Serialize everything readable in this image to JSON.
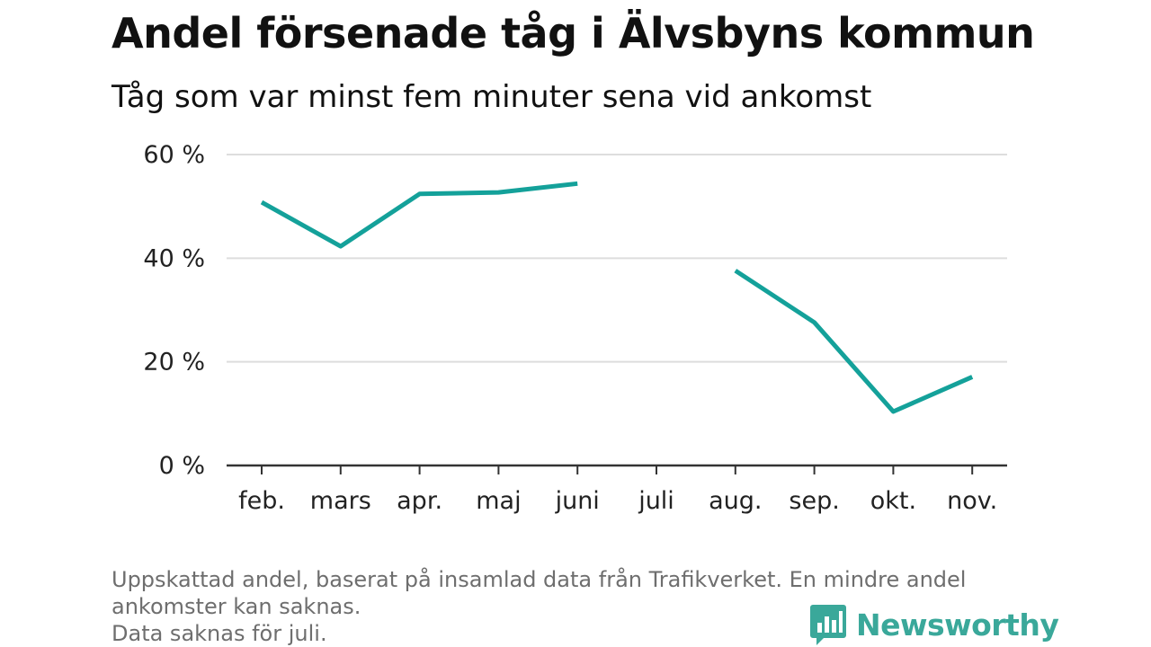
{
  "header": {
    "title": "Andel försenade tåg i Älvsbyns kommun",
    "subtitle": "Tåg som var minst fem minuter sena vid ankomst"
  },
  "footer": {
    "note_line1": "Uppskattad andel, baserat på insamlad data från Trafikverket. En mindre andel",
    "note_line2": "ankomster kan saknas.",
    "note_line3": "Data saknas för juli."
  },
  "brand": {
    "name": "Newsworthy",
    "color": "#3aa89a",
    "icon": "bar-chart-speech-bubble-icon"
  },
  "chart_data": {
    "type": "line",
    "categories": [
      "feb.",
      "mars",
      "apr.",
      "maj",
      "juni",
      "juli",
      "aug.",
      "sep.",
      "okt.",
      "nov."
    ],
    "series": [
      {
        "values": [
          50.8,
          42.3,
          52.4,
          52.7,
          54.4,
          null,
          37.6,
          27.6,
          10.4,
          17.1
        ],
        "color": "#14a19a"
      }
    ],
    "ylim": [
      0,
      60
    ],
    "yticks": [
      0,
      20,
      40,
      60
    ],
    "ytick_labels": [
      "0 %",
      "20 %",
      "40 %",
      "60 %"
    ],
    "grid": true
  }
}
